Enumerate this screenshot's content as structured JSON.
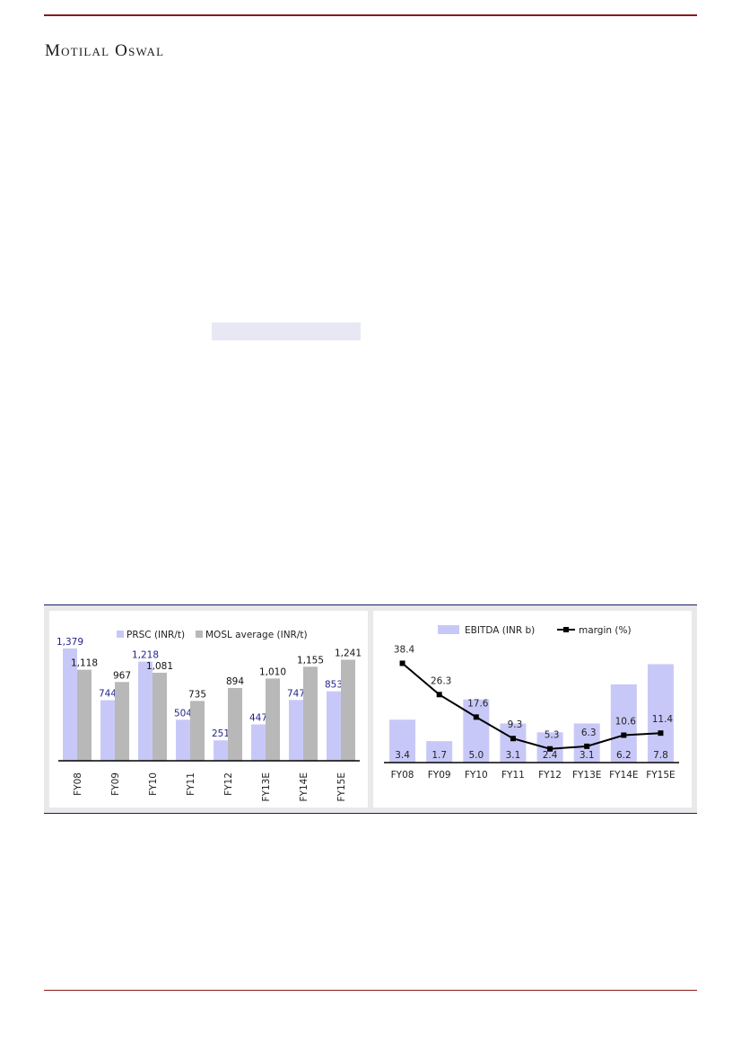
{
  "header": {
    "brand": "Motilal Oswal"
  },
  "chart_data": [
    {
      "type": "bar",
      "categories": [
        "FY08",
        "FY09",
        "FY10",
        "FY11",
        "FY12",
        "FY13E",
        "FY14E",
        "FY15E"
      ],
      "series": [
        {
          "name": "PRSC (INR/t)",
          "values": [
            1379,
            744,
            1218,
            504,
            251,
            447,
            747,
            853
          ],
          "color": "#c8c8f8",
          "label_color": "#1f1f8a"
        },
        {
          "name": "MOSL average (INR/t)",
          "values": [
            1118,
            967,
            1081,
            735,
            894,
            1010,
            1155,
            1241
          ],
          "color": "#b8b8b8",
          "label_color": "#111111"
        }
      ],
      "value_labels": [
        [
          "1,379",
          "744",
          "1,218",
          "504",
          "251",
          "447",
          "747",
          "853"
        ],
        [
          "1,118",
          "967",
          "1,081",
          "735",
          "894",
          "1,010",
          "1,155",
          "1,241"
        ]
      ],
      "ylim": [
        0,
        1500
      ],
      "legend_position": "top"
    },
    {
      "type": "bar",
      "categories": [
        "FY08",
        "FY09",
        "FY10",
        "FY11",
        "FY12",
        "FY13E",
        "FY14E",
        "FY15E"
      ],
      "series": [
        {
          "name": "EBITDA (INR b)",
          "kind": "bar",
          "values": [
            3.4,
            1.7,
            5.0,
            3.1,
            2.4,
            3.1,
            6.2,
            7.8
          ],
          "color": "#c8c8f8"
        },
        {
          "name": "margin (%)",
          "kind": "line",
          "values": [
            38.4,
            26.3,
            17.6,
            9.3,
            5.3,
            6.3,
            10.6,
            11.4
          ],
          "color": "#000000"
        }
      ],
      "value_labels": [
        [
          "3.4",
          "1.7",
          "5.0",
          "3.1",
          "2.4",
          "3.1",
          "6.2",
          "7.8"
        ],
        [
          "38.4",
          "26.3",
          "17.6",
          "9.3",
          "5.3",
          "6.3",
          "10.6",
          "11.4"
        ]
      ],
      "ylim_bars": [
        0,
        8.4
      ],
      "ylim_line": [
        0,
        41
      ],
      "legend_position": "top"
    }
  ]
}
